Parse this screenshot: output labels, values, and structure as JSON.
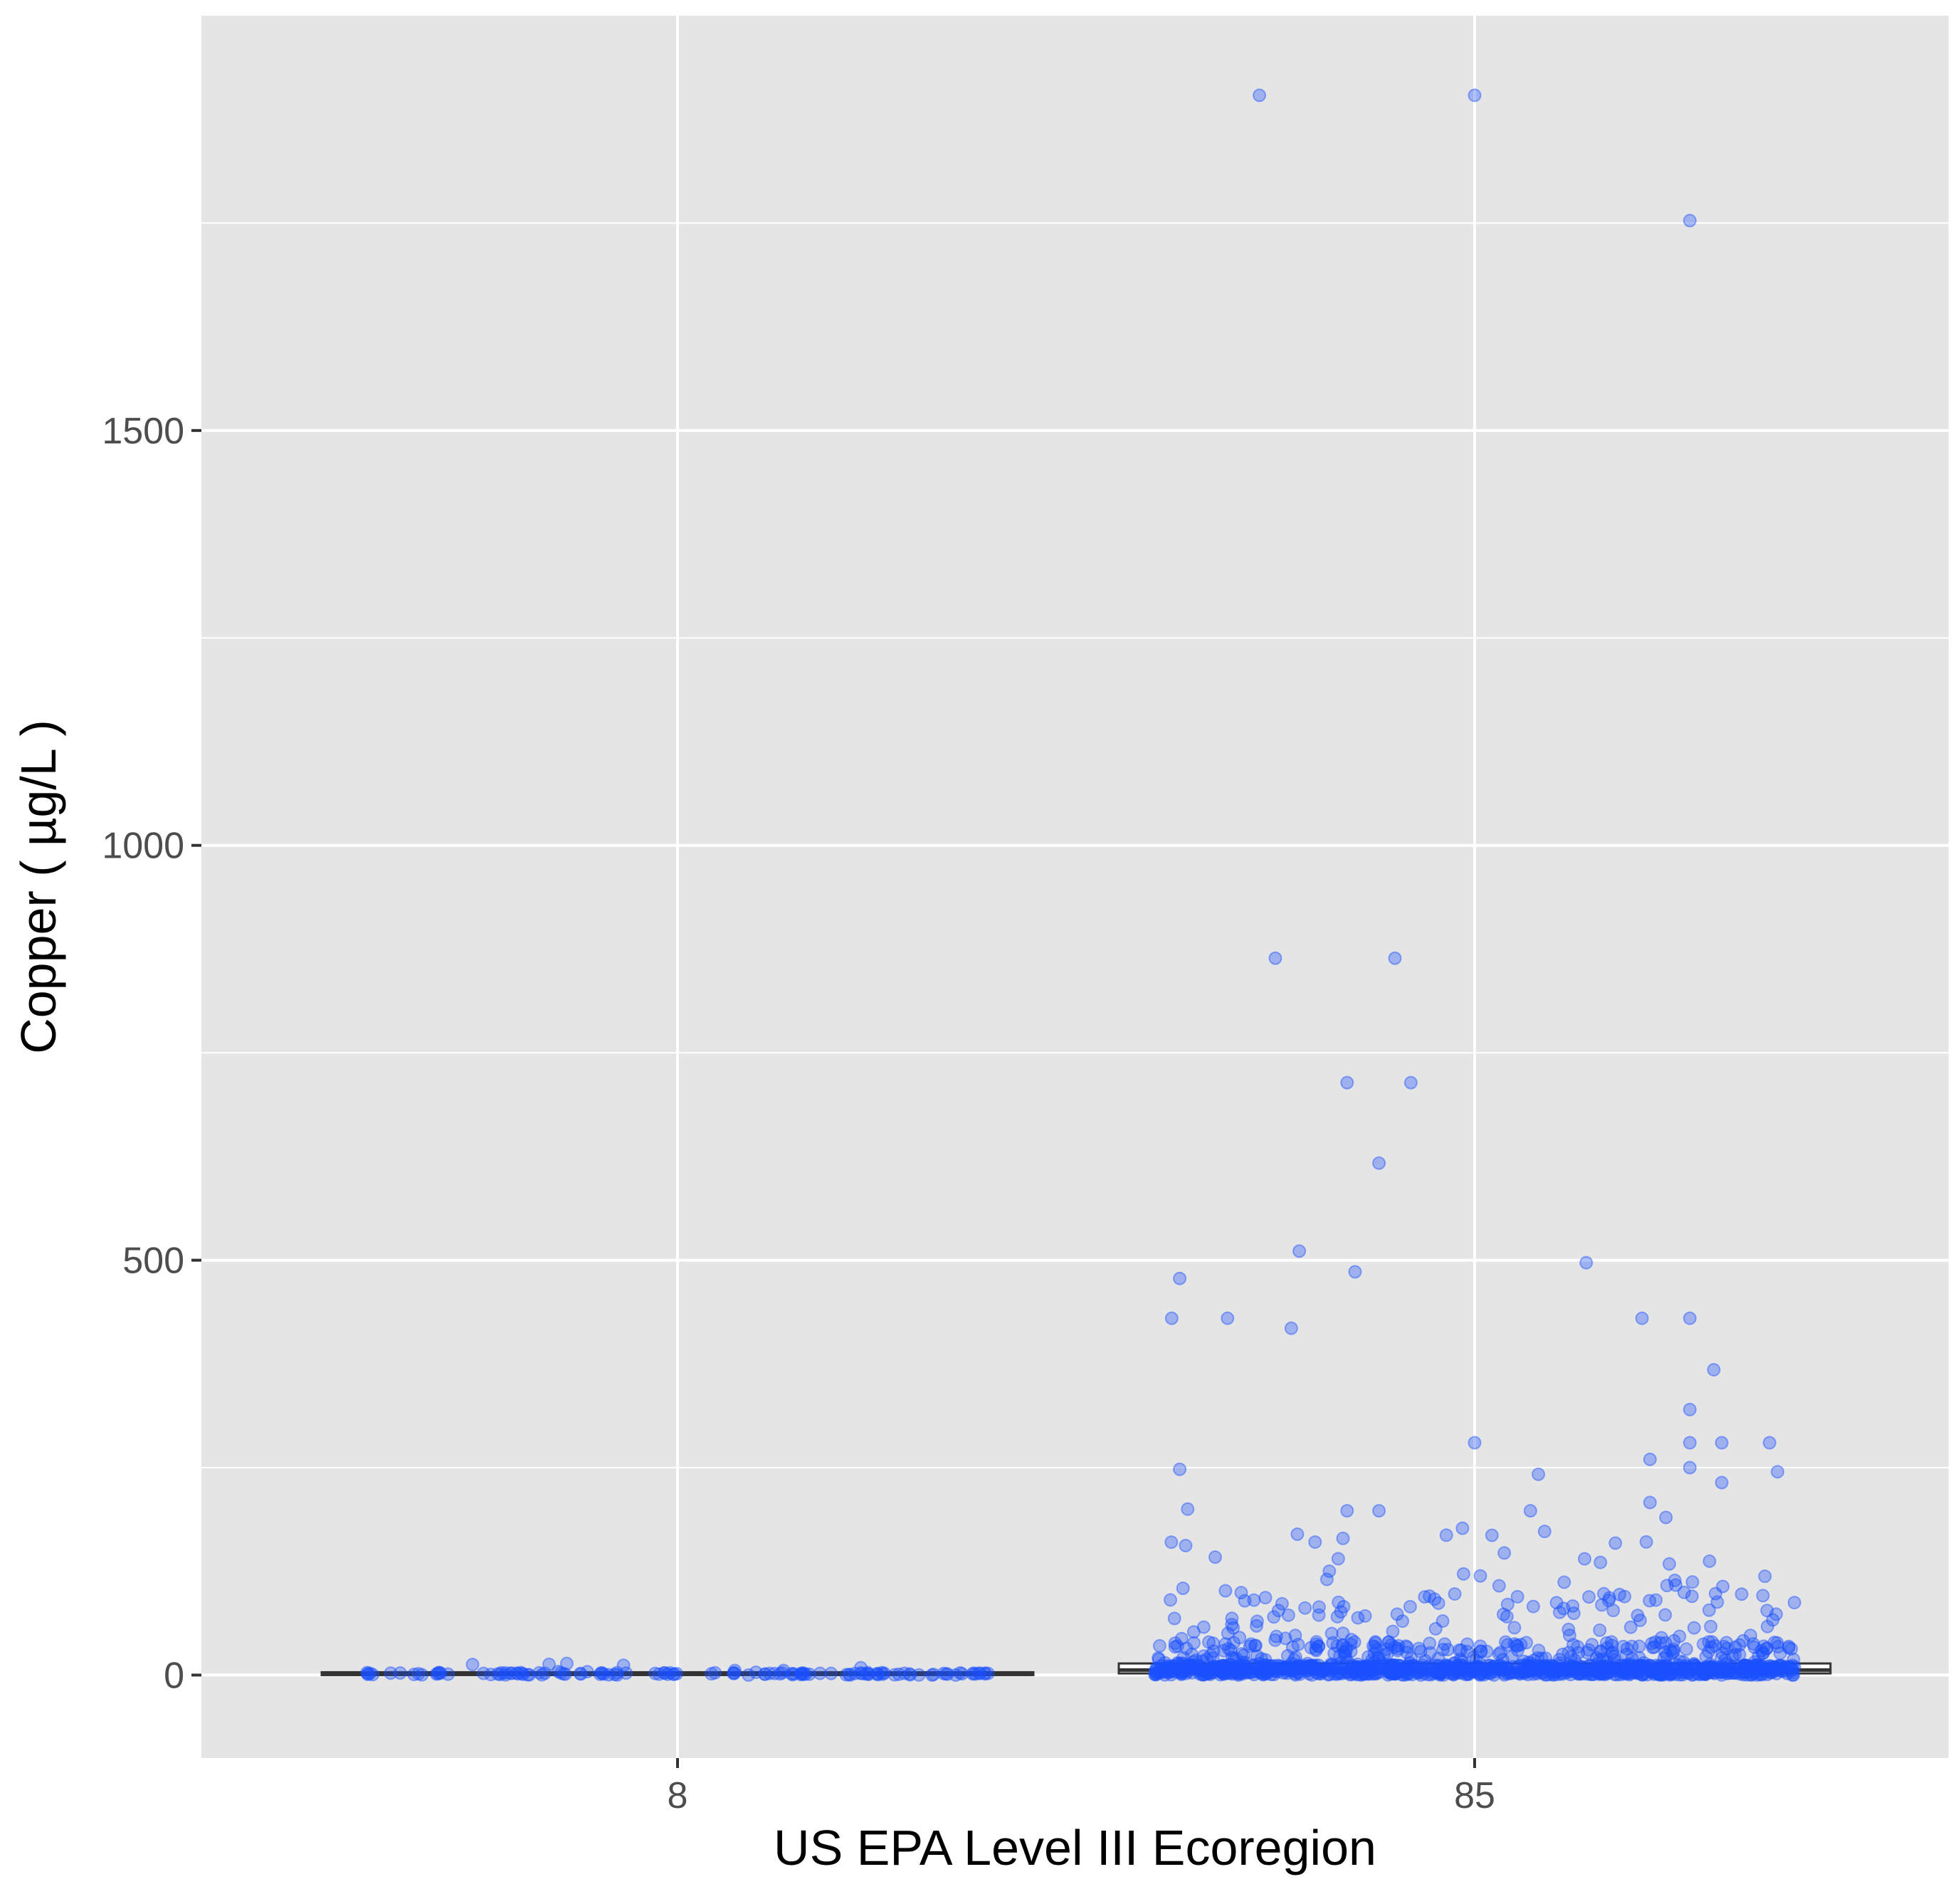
{
  "chart_data": {
    "type": "box+jitter",
    "xlabel": "US EPA Level III Ecoregion",
    "ylabel": "Copper ( µg/L )",
    "categories": [
      "8",
      "85"
    ],
    "ylim": [
      -100,
      2000
    ],
    "yticks": [
      0,
      500,
      1000,
      1500
    ],
    "grid": true,
    "background": "#e5e5e5",
    "grid_color": "#ffffff",
    "point_color": "#1a4fff",
    "point_opacity": 0.35,
    "box_fill": "#ffffff",
    "box_stroke": "#333333",
    "boxes": [
      {
        "category": "8",
        "q1": 0,
        "median": 1,
        "q3": 2,
        "whisker_low": 0,
        "whisker_high": 3
      },
      {
        "category": "85",
        "q1": 2,
        "median": 6,
        "q3": 14,
        "whisker_low": 0,
        "whisker_high": 32
      }
    ],
    "outliers_85": [
      {
        "x": -0.27,
        "y": 1904
      },
      {
        "x": 0.0,
        "y": 1904
      },
      {
        "x": 0.27,
        "y": 1753
      },
      {
        "x": -0.25,
        "y": 864
      },
      {
        "x": -0.16,
        "y": 714
      },
      {
        "x": -0.1,
        "y": 864
      },
      {
        "x": -0.08,
        "y": 714
      },
      {
        "x": -0.12,
        "y": 617
      },
      {
        "x": -0.22,
        "y": 511
      },
      {
        "x": -0.15,
        "y": 486
      },
      {
        "x": -0.37,
        "y": 478
      },
      {
        "x": -0.38,
        "y": 430
      },
      {
        "x": -0.31,
        "y": 430
      },
      {
        "x": -0.23,
        "y": 418
      },
      {
        "x": 0.14,
        "y": 497
      },
      {
        "x": 0.21,
        "y": 430
      },
      {
        "x": 0.27,
        "y": 430
      },
      {
        "x": 0.3,
        "y": 368
      },
      {
        "x": 0.27,
        "y": 320
      },
      {
        "x": 0.0,
        "y": 280
      },
      {
        "x": 0.27,
        "y": 280
      },
      {
        "x": 0.31,
        "y": 280
      },
      {
        "x": 0.37,
        "y": 280
      },
      {
        "x": 0.22,
        "y": 260
      },
      {
        "x": 0.27,
        "y": 250
      },
      {
        "x": 0.38,
        "y": 245
      },
      {
        "x": -0.37,
        "y": 248
      },
      {
        "x": 0.08,
        "y": 242
      },
      {
        "x": 0.31,
        "y": 232
      },
      {
        "x": -0.36,
        "y": 200
      },
      {
        "x": -0.16,
        "y": 198
      },
      {
        "x": -0.12,
        "y": 198
      },
      {
        "x": 0.07,
        "y": 198
      },
      {
        "x": 0.22,
        "y": 208
      },
      {
        "x": 0.24,
        "y": 190
      }
    ]
  }
}
